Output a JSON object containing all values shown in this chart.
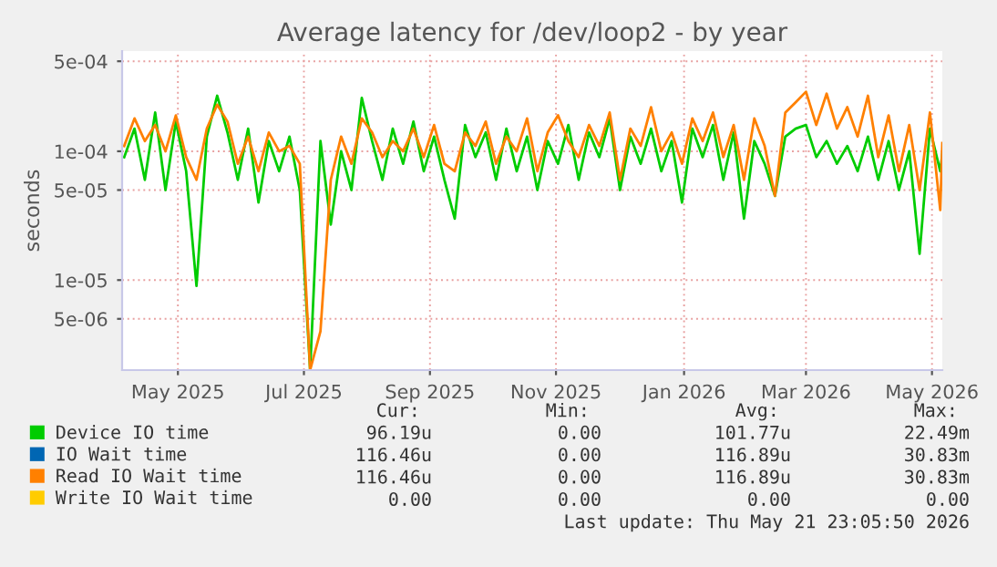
{
  "chart_data": {
    "type": "line",
    "title": "Average latency for /dev/loop2 - by year",
    "ylabel": "seconds",
    "log": "y",
    "grid": true,
    "legend": "bottom",
    "marker": "none",
    "line_style": "solid",
    "x": [
      "2025-04-20",
      "2025-04-25",
      "2025-04-30",
      "2025-05-05",
      "2025-05-10",
      "2025-05-15",
      "2025-05-20",
      "2025-05-25",
      "2025-05-30",
      "2025-06-04",
      "2025-06-09",
      "2025-06-14",
      "2025-06-19",
      "2025-06-24",
      "2025-06-29",
      "2025-07-04",
      "2025-07-09",
      "2025-07-14",
      "2025-07-19",
      "2025-07-24",
      "2025-07-29",
      "2025-08-03",
      "2025-08-08",
      "2025-08-13",
      "2025-08-18",
      "2025-08-23",
      "2025-08-28",
      "2025-09-02",
      "2025-09-07",
      "2025-09-12",
      "2025-09-17",
      "2025-09-22",
      "2025-09-27",
      "2025-10-02",
      "2025-10-07",
      "2025-10-12",
      "2025-10-17",
      "2025-10-22",
      "2025-10-27",
      "2025-11-01",
      "2025-11-06",
      "2025-11-11",
      "2025-11-16",
      "2025-11-21",
      "2025-11-26",
      "2025-12-01",
      "2025-12-06",
      "2025-12-11",
      "2025-12-16",
      "2025-12-21",
      "2025-12-26",
      "2025-12-31",
      "2026-01-05",
      "2026-01-10",
      "2026-01-15",
      "2026-01-20",
      "2026-01-25",
      "2026-01-30",
      "2026-02-04",
      "2026-02-09",
      "2026-02-14",
      "2026-02-19",
      "2026-02-24",
      "2026-03-01",
      "2026-03-06",
      "2026-03-11",
      "2026-03-16",
      "2026-03-21",
      "2026-03-26",
      "2026-03-31",
      "2026-04-05",
      "2026-04-10",
      "2026-04-15",
      "2026-04-20",
      "2026-04-25",
      "2026-04-30",
      "2026-05-05",
      "2026-05-10",
      "2026-05-15",
      "2026-05-20",
      "2026-05-21"
    ],
    "series": [
      {
        "name": "Device IO time",
        "color": "#00cc00",
        "values": [
          9e-05,
          0.00015,
          6e-05,
          0.0002,
          5e-05,
          0.00017,
          7e-05,
          9e-06,
          0.00013,
          0.00027,
          0.00014,
          6e-05,
          0.00015,
          4e-05,
          0.00012,
          7e-05,
          0.00013,
          5e-05,
          2e-06,
          0.00012,
          2.7e-05,
          0.0001,
          5e-05,
          0.00026,
          0.00012,
          6e-05,
          0.00015,
          8e-05,
          0.00017,
          7e-05,
          0.00013,
          6e-05,
          3e-05,
          0.00016,
          9e-05,
          0.00014,
          6e-05,
          0.00015,
          7e-05,
          0.00013,
          5e-05,
          0.00012,
          8e-05,
          0.00016,
          6e-05,
          0.00014,
          9e-05,
          0.00018,
          5e-05,
          0.00013,
          8e-05,
          0.00015,
          7e-05,
          0.00012,
          4e-05,
          0.00015,
          9e-05,
          0.00016,
          6e-05,
          0.00014,
          3e-05,
          0.00012,
          8e-05,
          4.5e-05,
          0.00013,
          0.00015,
          0.00016,
          9e-05,
          0.00012,
          8e-05,
          0.00011,
          7e-05,
          0.00013,
          6e-05,
          0.00012,
          5e-05,
          0.0001,
          1.6e-05,
          0.00015,
          7e-05,
          9.6e-05
        ]
      },
      {
        "name": "IO Wait time",
        "color": "#0066b3",
        "values": [
          null,
          null,
          null,
          null,
          null,
          null,
          null,
          null,
          null,
          null,
          null,
          null,
          null,
          null,
          null,
          null,
          null,
          null,
          null,
          null,
          null,
          null,
          null,
          null,
          null,
          null,
          null,
          null,
          null,
          null,
          null,
          null,
          null,
          null,
          null,
          null,
          null,
          null,
          null,
          null,
          null,
          null,
          null,
          null,
          null,
          null,
          null,
          null,
          null,
          null,
          null,
          null,
          null,
          null,
          null,
          null,
          null,
          null,
          null,
          null,
          null,
          null,
          null,
          null,
          null,
          null,
          null,
          null,
          null,
          null,
          null,
          null,
          null,
          null,
          null,
          null,
          null,
          null,
          null,
          null,
          null
        ]
      },
      {
        "name": "Read IO Wait time",
        "color": "#ff8000",
        "values": [
          0.00011,
          0.00018,
          0.00012,
          0.00016,
          0.0001,
          0.00019,
          9e-05,
          6e-05,
          0.00015,
          0.00023,
          0.00017,
          8e-05,
          0.00013,
          7e-05,
          0.00014,
          0.0001,
          0.00011,
          8e-05,
          2e-06,
          4e-06,
          6e-05,
          0.00013,
          8e-05,
          0.00018,
          0.00014,
          9e-05,
          0.00012,
          0.0001,
          0.00015,
          9e-05,
          0.00016,
          8e-05,
          7e-05,
          0.00014,
          0.00011,
          0.00017,
          8e-05,
          0.00013,
          0.0001,
          0.00018,
          7e-05,
          0.00014,
          0.00019,
          0.00012,
          9e-05,
          0.00016,
          0.00011,
          0.0002,
          6e-05,
          0.00015,
          0.00011,
          0.00022,
          0.0001,
          0.00014,
          8e-05,
          0.00018,
          0.00012,
          0.0002,
          9e-05,
          0.00016,
          6e-05,
          0.00018,
          0.00011,
          4.5e-05,
          0.0002,
          0.00024,
          0.00029,
          0.00016,
          0.00028,
          0.00015,
          0.00022,
          0.00013,
          0.00027,
          9e-05,
          0.00019,
          7e-05,
          0.00016,
          5e-05,
          0.0002,
          3.5e-05,
          0.000116
        ]
      },
      {
        "name": "Write IO Wait time",
        "color": "#ffcc00",
        "values": [
          null,
          null,
          null,
          null,
          null,
          null,
          null,
          null,
          null,
          null,
          null,
          null,
          null,
          null,
          null,
          null,
          null,
          null,
          null,
          null,
          null,
          null,
          null,
          null,
          null,
          null,
          null,
          null,
          null,
          null,
          null,
          null,
          null,
          null,
          null,
          null,
          null,
          null,
          null,
          null,
          null,
          null,
          null,
          null,
          null,
          null,
          null,
          null,
          null,
          null,
          null,
          null,
          null,
          null,
          null,
          null,
          null,
          null,
          null,
          null,
          null,
          null,
          null,
          null,
          null,
          null,
          null,
          null,
          null,
          null,
          null,
          null,
          null,
          null,
          null,
          null,
          null,
          null,
          null,
          null,
          null
        ]
      }
    ],
    "xlim": [
      "2025-04-19",
      "2026-05-21"
    ],
    "xticks": [
      {
        "value": "2025-05-16",
        "label": "May 2025"
      },
      {
        "value": "2025-07-16",
        "label": "Jul 2025"
      },
      {
        "value": "2025-09-15",
        "label": "Sep 2025"
      },
      {
        "value": "2025-11-15",
        "label": "Nov 2025"
      },
      {
        "value": "2026-01-16",
        "label": "Jan 2026"
      },
      {
        "value": "2026-03-16",
        "label": "Mar 2026"
      },
      {
        "value": "2026-05-16",
        "label": "May 2026"
      }
    ],
    "ylim": [
      2e-06,
      0.0006
    ],
    "yticks": [
      {
        "value": 5e-06,
        "label": "5e-06"
      },
      {
        "value": 1e-05,
        "label": "1e-05"
      },
      {
        "value": 5e-05,
        "label": "5e-05"
      },
      {
        "value": 0.0001,
        "label": "1e-04"
      },
      {
        "value": 0.0005,
        "label": "5e-04"
      }
    ],
    "annotations": [
      "Cur:",
      "Min:",
      "Avg:",
      "Max:",
      "96.19u",
      "0.00",
      "101.77u",
      "22.49m",
      "116.46u",
      "0.00",
      "116.89u",
      "30.83m",
      "116.46u",
      "0.00",
      "116.89u",
      "30.83m",
      "0.00",
      "0.00",
      "0.00",
      "0.00",
      "Last update: Thu May 21 23:05:50 2026"
    ]
  }
}
